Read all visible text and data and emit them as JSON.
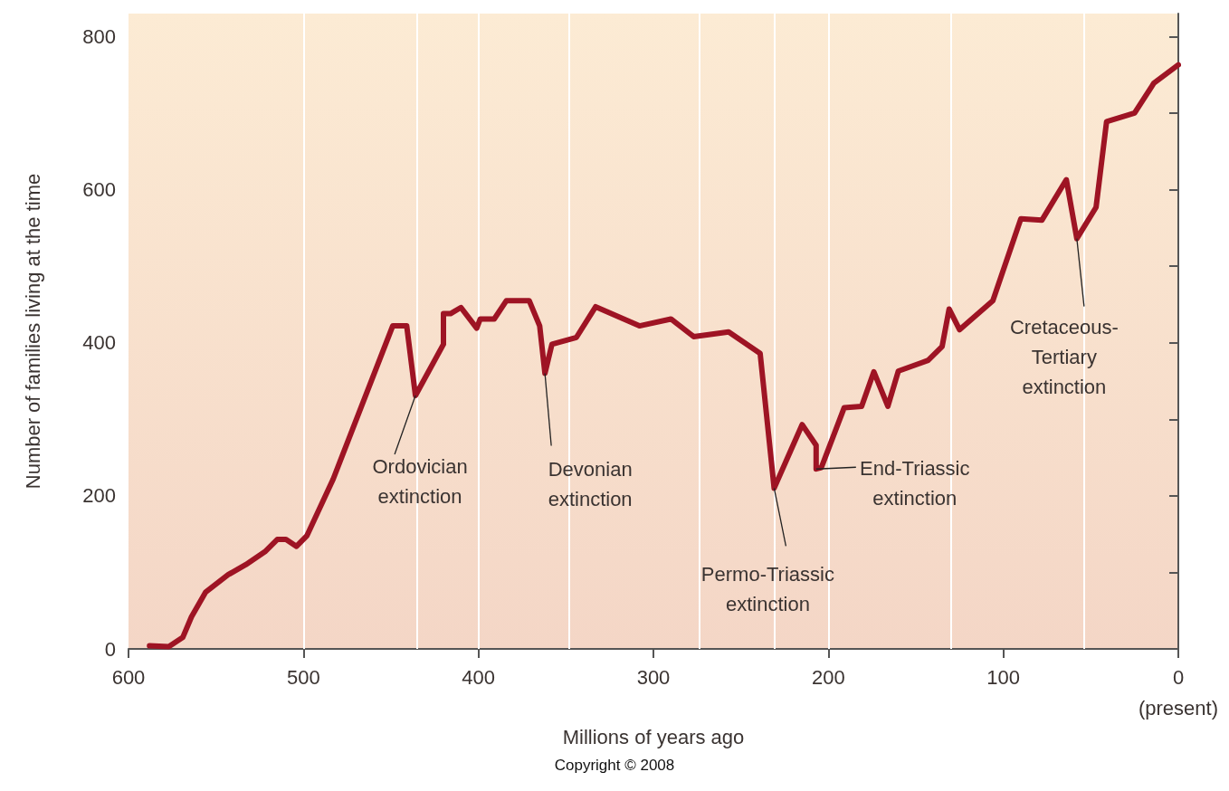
{
  "chart_data": {
    "type": "line",
    "xlabel": "Millions of years ago",
    "ylabel": "Number of families living at the time",
    "xlim": [
      600,
      0
    ],
    "ylim": [
      0,
      830
    ],
    "xticks": [
      600,
      500,
      400,
      300,
      200,
      100,
      {
        "value": 0,
        "label": "0\n(present)"
      }
    ],
    "yticks": [
      0,
      {
        "value": 100,
        "label": null
      },
      200,
      {
        "value": 300,
        "label": null
      },
      400,
      {
        "value": 500,
        "label": null
      },
      600,
      {
        "value": 700,
        "label": null
      },
      800
    ],
    "grid": false,
    "marker": "none",
    "line_style": "solid",
    "series": [
      {
        "color": "#9e1424",
        "x": [
          588,
          577,
          569,
          564,
          556,
          543,
          533,
          522,
          515,
          510,
          504,
          498,
          483,
          449,
          441,
          436,
          420,
          420,
          416,
          410,
          401,
          399,
          391,
          384,
          371,
          365,
          362,
          358,
          344,
          333,
          308,
          290,
          277,
          257,
          239,
          231,
          215,
          207,
          207,
          204,
          191,
          181,
          174,
          166,
          160,
          143,
          135,
          131,
          125,
          106,
          90,
          78,
          64,
          58,
          47,
          41,
          25,
          14,
          0
        ],
        "values": [
          4,
          3,
          15,
          42,
          74,
          97,
          110,
          127,
          143,
          143,
          134,
          148,
          222,
          422,
          422,
          331,
          398,
          438,
          438,
          446,
          419,
          431,
          431,
          455,
          455,
          422,
          360,
          398,
          407,
          447,
          422,
          431,
          408,
          414,
          386,
          210,
          293,
          266,
          235,
          237,
          315,
          317,
          362,
          317,
          363,
          377,
          395,
          444,
          417,
          455,
          562,
          560,
          613,
          536,
          577,
          689,
          700,
          739,
          763
        ]
      }
    ],
    "ref_lines": [
      {
        "axis": "x",
        "value": 500,
        "color": "#ffffff"
      },
      {
        "axis": "x",
        "value": 435,
        "color": "#ffffff"
      },
      {
        "axis": "x",
        "value": 400,
        "color": "#ffffff"
      },
      {
        "axis": "x",
        "value": 348,
        "color": "#ffffff"
      },
      {
        "axis": "x",
        "value": 274,
        "color": "#ffffff"
      },
      {
        "axis": "x",
        "value": 231,
        "color": "#ffffff"
      },
      {
        "axis": "x",
        "value": 200,
        "color": "#ffffff"
      },
      {
        "axis": "x",
        "value": 130,
        "color": "#ffffff"
      },
      {
        "axis": "x",
        "value": 54,
        "color": "#ffffff"
      }
    ],
    "annotations": [
      {
        "text": "Ordovician\nextinction",
        "x": 436,
        "y": 331
      },
      {
        "text": "Devonian\nextinction",
        "x": 362,
        "y": 360
      },
      {
        "text": "Permo-Triassic\nextinction",
        "x": 231,
        "y": 210
      },
      {
        "text": "End-Triassic\nextinction",
        "x": 207,
        "y": 235
      },
      {
        "text": "Cretaceous-\nTertiary\nextinction",
        "x": 58,
        "y": 536
      },
      "Copyright © 2008"
    ]
  }
}
